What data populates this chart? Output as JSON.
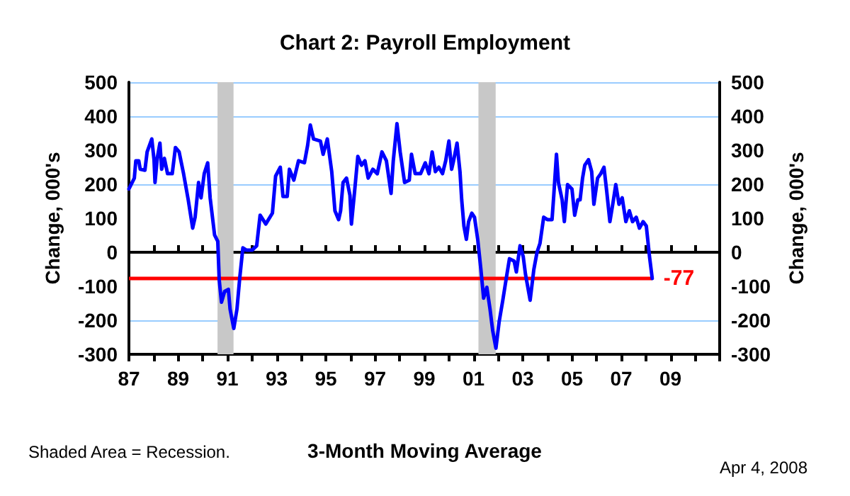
{
  "chart_data": {
    "type": "line",
    "title": "Chart 2: Payroll Employment",
    "xlabel": "3-Month Moving Average",
    "ylabel": "Change, 000's",
    "y2label": "Change, 000's",
    "annotations": [
      "Shaded Area = Recession.",
      "Apr 4, 2008"
    ],
    "series": [
      {
        "color": "#0000ff",
        "x": [
          1987.0,
          1987.22,
          1987.28,
          1987.4,
          1987.46,
          1987.65,
          1987.74,
          1987.93,
          1988.02,
          1988.06,
          1988.15,
          1988.26,
          1988.33,
          1988.44,
          1988.57,
          1988.76,
          1988.89,
          1989.04,
          1989.22,
          1989.41,
          1989.59,
          1989.69,
          1989.83,
          1989.93,
          1990.06,
          1990.2,
          1990.3,
          1990.48,
          1990.61,
          1990.67,
          1990.76,
          1990.89,
          1991.04,
          1991.11,
          1991.26,
          1991.39,
          1991.5,
          1991.63,
          1991.78,
          1992.0,
          1992.19,
          1992.33,
          1992.56,
          1992.83,
          1992.96,
          1993.15,
          1993.26,
          1993.43,
          1993.52,
          1993.7,
          1993.89,
          1994.13,
          1994.26,
          1994.37,
          1994.5,
          1994.78,
          1994.89,
          1995.06,
          1995.24,
          1995.37,
          1995.52,
          1995.6,
          1995.7,
          1995.84,
          1995.98,
          1996.04,
          1996.17,
          1996.3,
          1996.45,
          1996.59,
          1996.72,
          1996.91,
          1997.09,
          1997.28,
          1997.46,
          1997.65,
          1997.74,
          1997.89,
          1998.02,
          1998.2,
          1998.39,
          1998.48,
          1998.63,
          1998.85,
          1999.04,
          1999.19,
          1999.32,
          1999.45,
          1999.59,
          1999.74,
          1999.87,
          2000.0,
          2000.11,
          2000.19,
          2000.33,
          2000.45,
          2000.52,
          2000.61,
          2000.71,
          2000.8,
          2000.93,
          2001.04,
          2001.17,
          2001.3,
          2001.41,
          2001.54,
          2001.67,
          2001.78,
          2001.91,
          2002.04,
          2002.19,
          2002.33,
          2002.46,
          2002.65,
          2002.74,
          2002.89,
          2003.02,
          2003.11,
          2003.3,
          2003.45,
          2003.58,
          2003.7,
          2003.85,
          2004.0,
          2004.19,
          2004.26,
          2004.37,
          2004.45,
          2004.6,
          2004.69,
          2004.82,
          2005.0,
          2005.11,
          2005.24,
          2005.33,
          2005.43,
          2005.52,
          2005.67,
          2005.8,
          2005.89,
          2006.04,
          2006.17,
          2006.3,
          2006.41,
          2006.54,
          2006.67,
          2006.78,
          2006.91,
          2007.04,
          2007.19,
          2007.33,
          2007.46,
          2007.61,
          2007.74,
          2007.89,
          2008.02,
          2008.15,
          2008.26
        ],
        "values": [
          186,
          218,
          269,
          269,
          244,
          241,
          295,
          333,
          272,
          205,
          276,
          321,
          244,
          276,
          231,
          231,
          308,
          295,
          231,
          154,
          71,
          103,
          205,
          160,
          231,
          263,
          160,
          51,
          32,
          -83,
          -147,
          -115,
          -109,
          -167,
          -224,
          -167,
          -77,
          13,
          6,
          6,
          19,
          109,
          83,
          115,
          224,
          250,
          164,
          164,
          244,
          212,
          269,
          263,
          314,
          374,
          333,
          327,
          288,
          333,
          237,
          122,
          96,
          122,
          205,
          218,
          167,
          83,
          180,
          282,
          256,
          269,
          218,
          244,
          231,
          295,
          269,
          173,
          269,
          378,
          295,
          205,
          212,
          288,
          231,
          231,
          263,
          231,
          295,
          237,
          250,
          231,
          269,
          327,
          244,
          269,
          321,
          237,
          154,
          77,
          38,
          90,
          115,
          103,
          38,
          -51,
          -135,
          -103,
          -167,
          -231,
          -282,
          -205,
          -141,
          -77,
          -19,
          -26,
          -58,
          19,
          -13,
          -64,
          -141,
          -51,
          0,
          26,
          103,
          96,
          96,
          167,
          288,
          205,
          154,
          90,
          199,
          186,
          109,
          154,
          154,
          218,
          256,
          272,
          237,
          141,
          218,
          231,
          250,
          180,
          90,
          147,
          199,
          141,
          160,
          90,
          122,
          90,
          103,
          71,
          90,
          77,
          -13,
          -77
        ]
      }
    ],
    "xlim": [
      1987,
      2011
    ],
    "xticks": [
      {
        "value": 1987,
        "label": "87"
      },
      {
        "value": 1988,
        "label": null
      },
      {
        "value": 1989,
        "label": "89"
      },
      {
        "value": 1990,
        "label": null
      },
      {
        "value": 1991,
        "label": "91"
      },
      {
        "value": 1992,
        "label": null
      },
      {
        "value": 1993,
        "label": "93"
      },
      {
        "value": 1994,
        "label": null
      },
      {
        "value": 1995,
        "label": "95"
      },
      {
        "value": 1996,
        "label": null
      },
      {
        "value": 1997,
        "label": "97"
      },
      {
        "value": 1998,
        "label": null
      },
      {
        "value": 1999,
        "label": "99"
      },
      {
        "value": 2000,
        "label": null
      },
      {
        "value": 2001,
        "label": "01"
      },
      {
        "value": 2002,
        "label": null
      },
      {
        "value": 2003,
        "label": "03"
      },
      {
        "value": 2004,
        "label": null
      },
      {
        "value": 2005,
        "label": "05"
      },
      {
        "value": 2006,
        "label": null
      },
      {
        "value": 2007,
        "label": "07"
      },
      {
        "value": 2008,
        "label": null
      },
      {
        "value": 2009,
        "label": "09"
      },
      {
        "value": 2010,
        "label": null
      },
      {
        "value": 2011,
        "label": null
      }
    ],
    "ylim": [
      -300,
      500
    ],
    "yticks": [
      -300,
      -200,
      -100,
      0,
      100,
      200,
      300,
      400,
      500
    ],
    "y2lim": [
      -300,
      500
    ],
    "y2ticks": [
      -300,
      -200,
      -100,
      0,
      100,
      200,
      300,
      400,
      500
    ],
    "ref_lines": [
      {
        "axis": "y",
        "value": -77,
        "label": "-77",
        "color": "#ff0000"
      }
    ],
    "bands": [
      {
        "axis": "x",
        "from": 1990.6,
        "to": 1991.25,
        "color": "#c8c8c8"
      },
      {
        "axis": "x",
        "from": 2001.2,
        "to": 2001.9,
        "color": "#c8c8c8"
      }
    ],
    "grid": "y",
    "marker": "none",
    "line_style": "solid"
  }
}
